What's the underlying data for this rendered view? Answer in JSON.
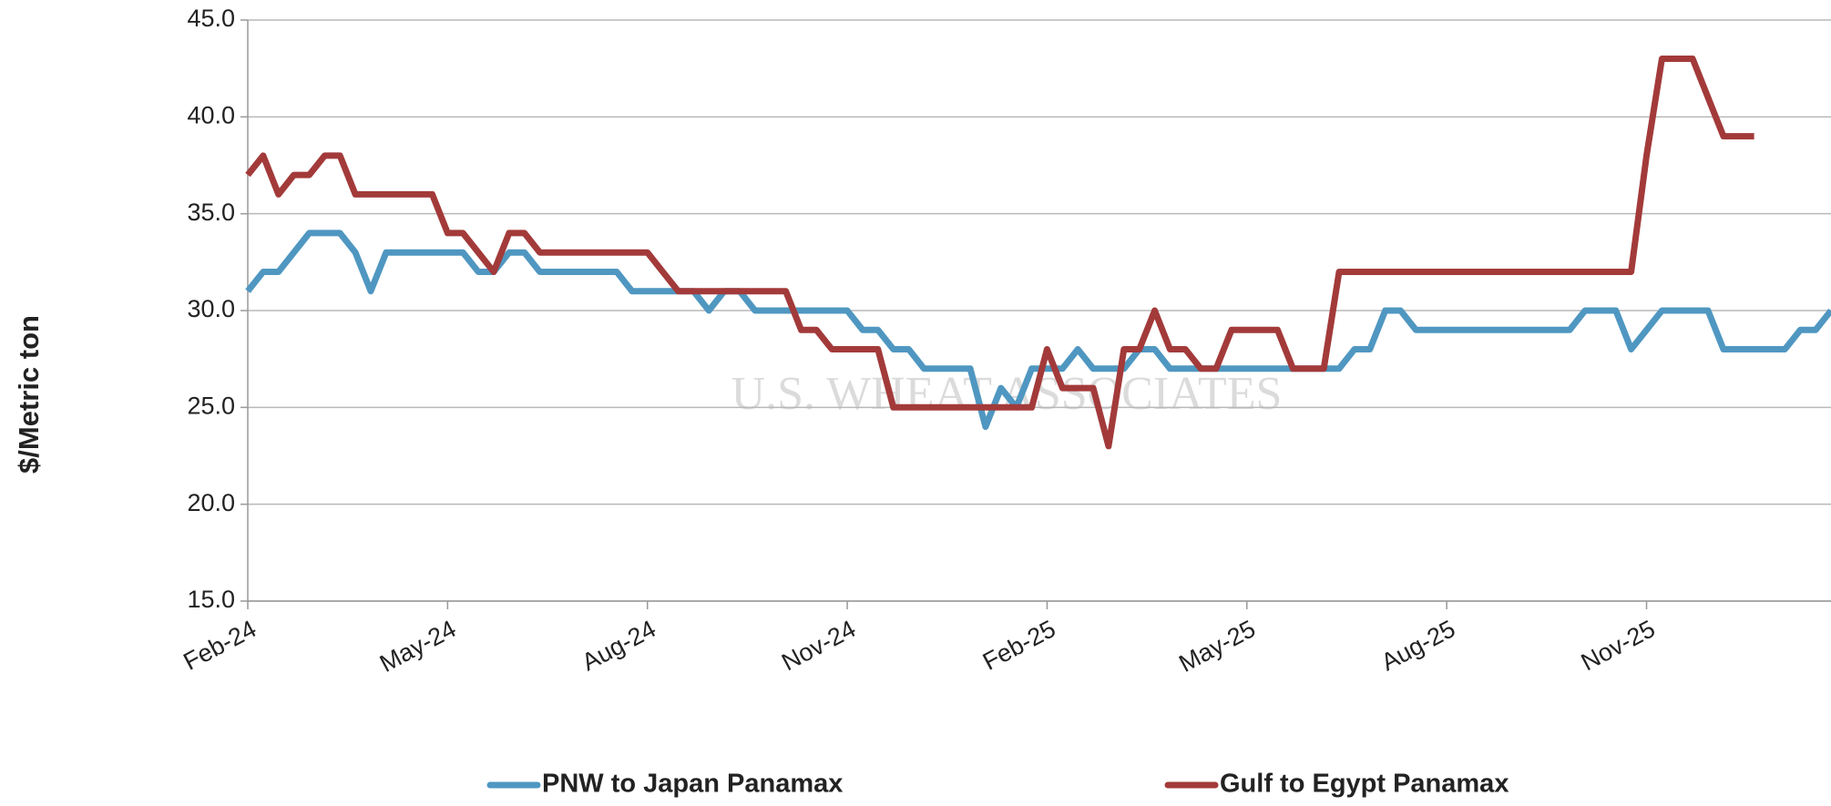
{
  "chart_data": {
    "type": "line",
    "y_label": "$/Metric ton",
    "watermark": "U.S. WHEAT ASSOCIATES",
    "categories": [
      "Feb-24",
      null,
      null,
      null,
      null,
      null,
      null,
      null,
      null,
      null,
      null,
      null,
      null,
      "May-24",
      null,
      null,
      null,
      null,
      null,
      null,
      null,
      null,
      null,
      null,
      null,
      null,
      "Aug-24",
      null,
      null,
      null,
      null,
      null,
      null,
      null,
      null,
      null,
      null,
      null,
      null,
      "Nov-24",
      null,
      null,
      null,
      null,
      null,
      null,
      null,
      null,
      null,
      null,
      null,
      null,
      "Feb-25",
      null,
      null,
      null,
      null,
      null,
      null,
      null,
      null,
      null,
      null,
      null,
      null,
      "May-25",
      null,
      null,
      null,
      null,
      null,
      null,
      null,
      null,
      null,
      null,
      null,
      null,
      "Aug-25",
      null,
      null,
      null,
      null,
      null,
      null,
      null,
      null,
      null,
      null,
      null,
      null,
      "Nov-25",
      null,
      null,
      null,
      null,
      null,
      null,
      null,
      null,
      null,
      null,
      null,
      null
    ],
    "series": [
      {
        "name": "PNW to Japan Panamax",
        "color": "#4f97c1",
        "values": [
          31,
          32,
          32,
          33,
          34,
          34,
          34,
          33,
          31,
          33,
          33,
          33,
          33,
          33,
          33,
          32,
          32,
          33,
          33,
          32,
          32,
          32,
          32,
          32,
          32,
          31,
          31,
          31,
          31,
          31,
          30,
          31,
          31,
          30,
          30,
          30,
          30,
          30,
          30,
          30,
          29,
          29,
          28,
          28,
          27,
          27,
          27,
          27,
          24,
          26,
          25,
          27,
          27,
          27,
          28,
          27,
          27,
          27,
          28,
          28,
          27,
          27,
          27,
          27,
          27,
          27,
          27,
          27,
          27,
          27,
          27,
          27,
          28,
          28,
          30,
          30,
          29,
          29,
          29,
          29,
          29,
          29,
          29,
          29,
          29,
          29,
          29,
          30,
          30,
          30,
          28,
          29,
          30,
          30,
          30,
          30,
          28,
          28,
          28,
          28,
          28,
          29,
          29,
          30
        ]
      },
      {
        "name": "Gulf to Egypt Panamax",
        "color": "#a33a3a",
        "values": [
          37,
          38,
          36,
          37,
          37,
          38,
          38,
          36,
          36,
          36,
          36,
          36,
          36,
          34,
          34,
          33,
          32,
          34,
          34,
          33,
          33,
          33,
          33,
          33,
          33,
          33,
          33,
          32,
          31,
          31,
          31,
          31,
          31,
          31,
          31,
          31,
          29,
          29,
          28,
          28,
          28,
          28,
          25,
          25,
          25,
          25,
          25,
          25,
          25,
          25,
          25,
          25,
          28,
          26,
          26,
          26,
          23,
          28,
          28,
          30,
          28,
          28,
          27,
          27,
          29,
          29,
          29,
          29,
          27,
          27,
          27,
          32,
          32,
          32,
          32,
          32,
          32,
          32,
          32,
          32,
          32,
          32,
          32,
          32,
          32,
          32,
          32,
          32,
          32,
          32,
          32,
          38,
          43,
          43,
          43,
          41,
          39,
          39,
          39,
          null,
          null,
          null,
          null,
          null
        ]
      }
    ],
    "ylim": [
      15,
      45
    ],
    "yticks": [
      {
        "value": 15,
        "label": "15.0"
      },
      {
        "value": 20,
        "label": "20.0"
      },
      {
        "value": 25,
        "label": "25.0"
      },
      {
        "value": 30,
        "label": "30.0"
      },
      {
        "value": 35,
        "label": "35.0"
      },
      {
        "value": 40,
        "label": "40.0"
      },
      {
        "value": 45,
        "label": "45.0"
      }
    ],
    "grid": true,
    "legend": "bottom"
  }
}
